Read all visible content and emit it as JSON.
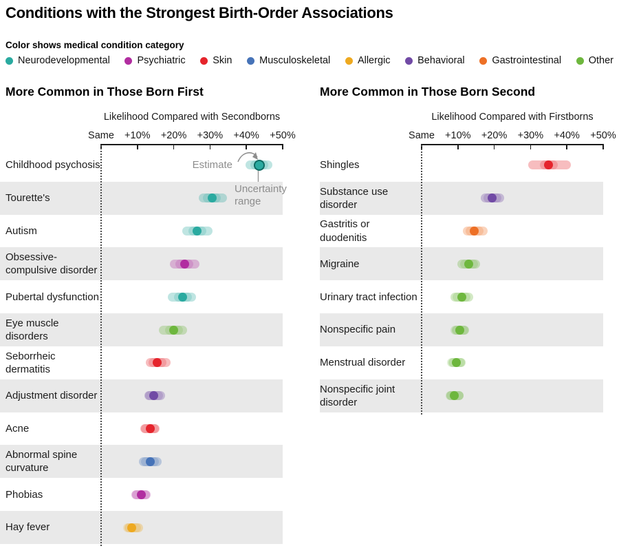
{
  "title": "Conditions with the Strongest Birth-Order Associations",
  "legend": {
    "caption": "Color shows medical condition category",
    "categories": [
      {
        "label": "Neurodevelopmental",
        "color": "#2aaaa0"
      },
      {
        "label": "Psychiatric",
        "color": "#b12da0"
      },
      {
        "label": "Skin",
        "color": "#e5242c"
      },
      {
        "label": "Musculoskeletal",
        "color": "#4673b8"
      },
      {
        "label": "Allergic",
        "color": "#eea920"
      },
      {
        "label": "Behavioral",
        "color": "#714aa5"
      },
      {
        "label": "Gastrointestinal",
        "color": "#ed7026"
      },
      {
        "label": "Other",
        "color": "#6eb73e"
      }
    ]
  },
  "annotations": {
    "estimate": "Estimate",
    "uncertainty": "Uncertainty\nrange"
  },
  "chart_data": [
    {
      "type": "scatter",
      "variant": "dot-with-uncertainty-interval",
      "title": "More Common in Those Born First",
      "xlabel": "Likelihood Compared with Secondborns",
      "tick_labels": [
        "Same",
        "+10%",
        "+20%",
        "+30%",
        "+40%",
        "+50%"
      ],
      "xlim": [
        0,
        50
      ],
      "unit": "percent increase",
      "rows": [
        {
          "condition": "Childhood psychosis",
          "category": "Neurodevelopmental",
          "estimate": 43.5,
          "low": 41,
          "high": 46
        },
        {
          "condition": "Tourette's",
          "category": "Neurodevelopmental",
          "estimate": 30.5,
          "low": 28,
          "high": 33.5
        },
        {
          "condition": "Autism",
          "category": "Neurodevelopmental",
          "estimate": 26.5,
          "low": 23.5,
          "high": 29.5
        },
        {
          "condition": "Obsessive-\ncompulsive disorder",
          "category": "Psychiatric",
          "estimate": 23,
          "low": 20,
          "high": 26
        },
        {
          "condition": "Pubertal dysfunction",
          "category": "Neurodevelopmental",
          "estimate": 22.5,
          "low": 19.5,
          "high": 25
        },
        {
          "condition": "Eye muscle disorders",
          "category": "Other",
          "estimate": 20,
          "low": 17,
          "high": 22.5
        },
        {
          "condition": "Seborrheic dermatitis",
          "category": "Skin",
          "estimate": 15.5,
          "low": 13.5,
          "high": 18
        },
        {
          "condition": "Adjustment disorder",
          "category": "Behavioral",
          "estimate": 14.5,
          "low": 13,
          "high": 16.5
        },
        {
          "condition": "Acne",
          "category": "Skin",
          "estimate": 13.5,
          "low": 12,
          "high": 15
        },
        {
          "condition": "Abnormal spine\ncurvature",
          "category": "Musculoskeletal",
          "estimate": 13.5,
          "low": 11.5,
          "high": 15.5
        },
        {
          "condition": "Phobias",
          "category": "Psychiatric",
          "estimate": 11,
          "low": 9.5,
          "high": 12.5
        },
        {
          "condition": "Hay fever",
          "category": "Allergic",
          "estimate": 8.5,
          "low": 7.5,
          "high": 10.5
        }
      ]
    },
    {
      "type": "scatter",
      "variant": "dot-with-uncertainty-interval",
      "title": "More Common in Those Born Second",
      "xlabel": "Likelihood Compared with Firstborns",
      "tick_labels": [
        "Same",
        "+10%",
        "+20%",
        "+30%",
        "+40%",
        "+50%"
      ],
      "xlim": [
        0,
        50
      ],
      "unit": "percent increase",
      "rows": [
        {
          "condition": "Shingles",
          "category": "Skin",
          "estimate": 35,
          "low": 30.5,
          "high": 40
        },
        {
          "condition": "Substance use\ndisorder",
          "category": "Behavioral",
          "estimate": 19.5,
          "low": 17.5,
          "high": 21.5
        },
        {
          "condition": "Gastritis or\nduodenitis",
          "category": "Gastrointestinal",
          "estimate": 14.5,
          "low": 12.5,
          "high": 17
        },
        {
          "condition": "Migraine",
          "category": "Other",
          "estimate": 13,
          "low": 11,
          "high": 15
        },
        {
          "condition": "Urinary tract infection",
          "category": "Other",
          "estimate": 11,
          "low": 9,
          "high": 13
        },
        {
          "condition": "Nonspecific pain",
          "category": "Other",
          "estimate": 10.5,
          "low": 9.5,
          "high": 12
        },
        {
          "condition": "Menstrual disorder",
          "category": "Other",
          "estimate": 9.5,
          "low": 8.5,
          "high": 11
        },
        {
          "condition": "Nonspecific joint\ndisorder",
          "category": "Other",
          "estimate": 9,
          "low": 8,
          "high": 10.5
        }
      ]
    }
  ]
}
